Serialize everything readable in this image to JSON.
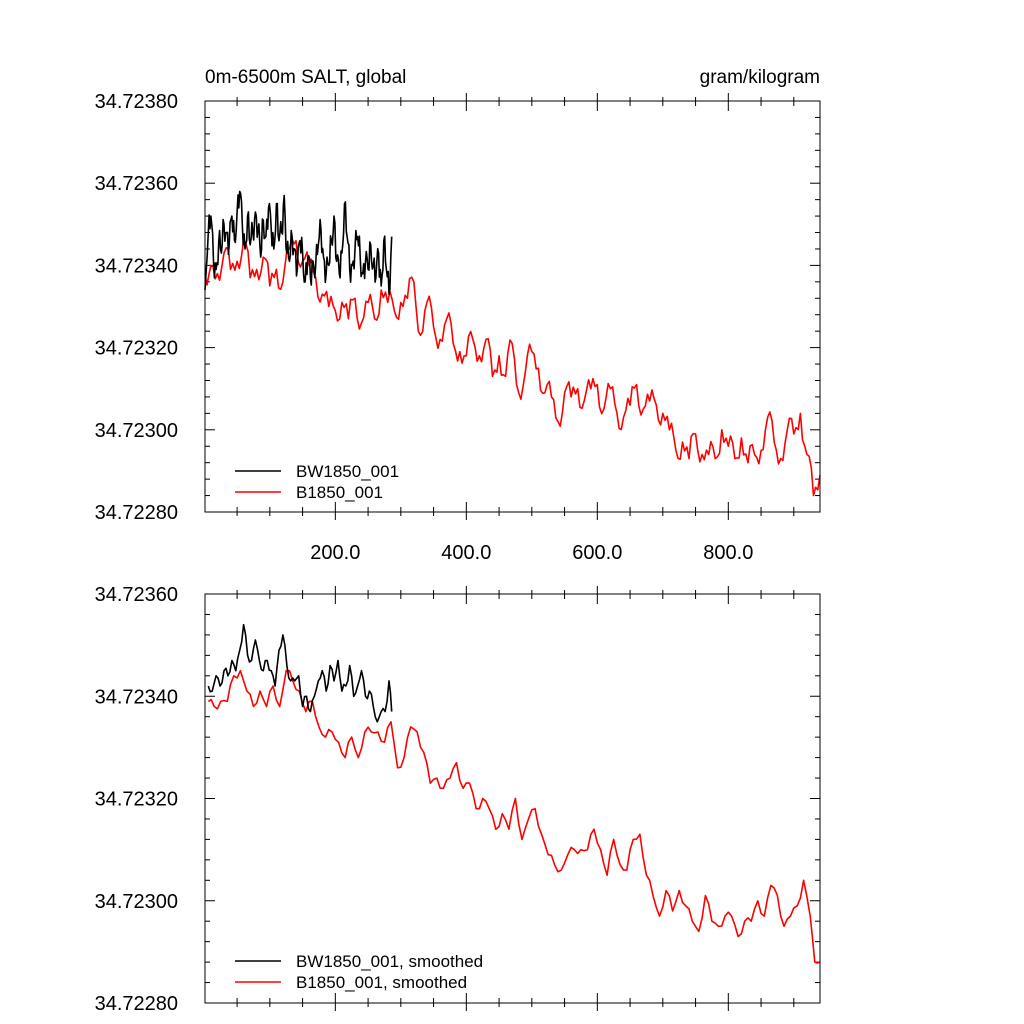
{
  "colors": {
    "bw": "#000000",
    "b": "#ff0000",
    "frame": "#000000",
    "background": "#ffffff"
  },
  "chart_data": [
    {
      "type": "line",
      "title_left": "0m-6500m SALT, global",
      "title_right": "gram/kilogram",
      "xlabel": "",
      "ylabel": "",
      "xlim": [
        1,
        940
      ],
      "ylim": [
        34.7228,
        34.7238
      ],
      "xticks": [
        200,
        400,
        600,
        800
      ],
      "xtick_labels": [
        "200.0",
        "400.0",
        "600.0",
        "800.0"
      ],
      "yticks": [
        34.7228,
        34.723,
        34.7232,
        34.7234,
        34.7236,
        34.7238
      ],
      "ytick_labels": [
        "34.72280",
        "34.72300",
        "34.72320",
        "34.72340",
        "34.72360",
        "34.72380"
      ],
      "legend_location": "lower-left",
      "series": [
        {
          "name": "BW1850_001",
          "color": "#000000",
          "x": [
            1,
            6,
            10,
            14,
            18,
            22,
            26,
            30,
            34,
            38,
            42,
            46,
            50,
            54,
            58,
            62,
            66,
            70,
            74,
            78,
            82,
            86,
            90,
            94,
            98,
            102,
            106,
            110,
            114,
            118,
            122,
            126,
            130,
            134,
            138,
            142,
            146,
            150,
            154,
            158,
            162,
            166,
            170,
            174,
            178,
            182,
            186,
            190,
            194,
            198,
            202,
            206,
            210,
            214,
            218,
            222,
            226,
            230,
            234,
            238,
            242,
            246,
            250,
            254,
            258,
            262,
            266,
            270,
            274,
            278,
            282,
            286
          ],
          "values": [
            34.72334,
            34.72348,
            34.72352,
            34.72341,
            34.72339,
            34.72346,
            34.72343,
            34.7235,
            34.72348,
            34.72345,
            34.72352,
            34.72346,
            34.72353,
            34.72358,
            34.7235,
            34.72344,
            34.72352,
            34.72345,
            34.72348,
            34.72353,
            34.72349,
            34.72342,
            34.72351,
            34.72347,
            34.72354,
            34.72349,
            34.72344,
            34.72355,
            34.72346,
            34.72348,
            34.72357,
            34.72343,
            34.72341,
            34.72347,
            34.72344,
            34.72339,
            34.72346,
            34.72343,
            34.72336,
            34.72342,
            34.72337,
            34.72341,
            34.7234,
            34.72345,
            34.72349,
            34.72342,
            34.72338,
            34.7234,
            34.72346,
            34.72352,
            34.72341,
            34.72338,
            34.72343,
            34.72355,
            34.72347,
            34.72339,
            34.7234,
            34.72344,
            34.72347,
            34.72342,
            34.72338,
            34.72341,
            34.72339,
            34.72345,
            34.7234,
            34.72337,
            34.72343,
            34.72335,
            34.72346,
            34.72339,
            34.72333,
            34.72347
          ]
        },
        {
          "name": "B1850_001",
          "color": "#ff0000",
          "x": [
            1,
            10,
            20,
            30,
            40,
            50,
            60,
            70,
            80,
            90,
            100,
            110,
            120,
            130,
            140,
            150,
            160,
            170,
            180,
            190,
            200,
            210,
            220,
            230,
            240,
            250,
            260,
            270,
            280,
            290,
            300,
            310,
            320,
            330,
            340,
            350,
            360,
            370,
            380,
            390,
            400,
            410,
            420,
            430,
            440,
            450,
            460,
            470,
            480,
            490,
            500,
            510,
            520,
            530,
            540,
            550,
            560,
            570,
            580,
            590,
            600,
            610,
            620,
            630,
            640,
            650,
            660,
            670,
            680,
            690,
            700,
            710,
            720,
            730,
            740,
            750,
            760,
            770,
            780,
            790,
            800,
            810,
            820,
            830,
            840,
            850,
            860,
            870,
            880,
            890,
            900,
            910,
            920,
            930,
            940
          ],
          "values": [
            34.72338,
            34.7234,
            34.72338,
            34.72343,
            34.72339,
            34.72341,
            34.72346,
            34.72337,
            34.72339,
            34.72342,
            34.72335,
            34.72339,
            34.72336,
            34.72344,
            34.72346,
            34.72341,
            34.7234,
            34.72337,
            34.72333,
            34.7233,
            34.72329,
            34.72331,
            34.72327,
            34.72332,
            34.72326,
            34.72331,
            34.72327,
            34.72334,
            34.72331,
            34.72329,
            34.72331,
            34.72332,
            34.72336,
            34.72323,
            34.72331,
            34.72325,
            34.72322,
            34.72327,
            34.72321,
            34.72319,
            34.72318,
            34.72322,
            34.72318,
            34.72322,
            34.72313,
            34.72318,
            34.72313,
            34.72321,
            34.72309,
            34.72314,
            34.72319,
            34.72315,
            34.72309,
            34.72308,
            34.72302,
            34.72309,
            34.72308,
            34.7231,
            34.72307,
            34.7231,
            34.72311,
            34.72305,
            34.7231,
            34.72304,
            34.72303,
            34.72306,
            34.72311,
            34.72305,
            34.72307,
            34.72306,
            34.72304,
            34.723,
            34.72295,
            34.72297,
            34.72293,
            34.72299,
            34.72294,
            34.72294,
            34.72293,
            34.723,
            34.72296,
            34.72293,
            34.72298,
            34.72292,
            34.72294,
            34.72295,
            34.72303,
            34.72297,
            34.72293,
            34.723,
            34.72299,
            34.72304,
            34.72294,
            34.72284,
            34.72289
          ]
        }
      ]
    },
    {
      "type": "line",
      "xlabel": "",
      "ylabel": "",
      "xlim": [
        1,
        940
      ],
      "ylim": [
        34.7228,
        34.7236
      ],
      "yticks": [
        34.7228,
        34.723,
        34.7232,
        34.7234,
        34.7236
      ],
      "ytick_labels": [
        "34.72280",
        "34.72300",
        "34.72320",
        "34.72340",
        "34.72360"
      ],
      "legend_location": "lower-left",
      "series": [
        {
          "name": "BW1850_001, smoothed",
          "color": "#000000",
          "x": [
            6,
            12,
            18,
            24,
            30,
            36,
            42,
            48,
            54,
            60,
            66,
            72,
            78,
            84,
            90,
            96,
            102,
            108,
            114,
            120,
            126,
            132,
            138,
            144,
            150,
            156,
            162,
            168,
            174,
            180,
            186,
            192,
            198,
            204,
            210,
            216,
            222,
            228,
            234,
            240,
            246,
            252,
            258,
            264,
            270,
            276,
            282,
            286
          ],
          "values": [
            34.72342,
            34.72341,
            34.72344,
            34.72342,
            34.72345,
            34.72344,
            34.72347,
            34.72345,
            34.72349,
            34.72354,
            34.72348,
            34.72347,
            34.72351,
            34.72347,
            34.72345,
            34.72347,
            34.72345,
            34.72342,
            34.72349,
            34.72352,
            34.72346,
            34.72343,
            34.72343,
            34.72344,
            34.72338,
            34.7234,
            34.72337,
            34.7234,
            34.72343,
            34.72345,
            34.72341,
            34.72346,
            34.72343,
            34.72347,
            34.72341,
            34.72342,
            34.72346,
            34.7234,
            34.72342,
            34.72345,
            34.7234,
            34.72341,
            34.72338,
            34.72335,
            34.72337,
            34.72337,
            34.72343,
            34.72337
          ]
        },
        {
          "name": "B1850_001, smoothed",
          "color": "#ff0000",
          "x": [
            6,
            15,
            25,
            35,
            45,
            55,
            65,
            75,
            85,
            95,
            105,
            115,
            125,
            135,
            145,
            155,
            165,
            175,
            185,
            195,
            205,
            215,
            225,
            235,
            245,
            255,
            265,
            275,
            285,
            295,
            305,
            315,
            325,
            335,
            345,
            355,
            365,
            375,
            385,
            395,
            405,
            415,
            425,
            435,
            445,
            455,
            465,
            475,
            485,
            495,
            505,
            515,
            525,
            535,
            545,
            555,
            565,
            575,
            585,
            595,
            605,
            615,
            625,
            635,
            645,
            655,
            665,
            675,
            685,
            695,
            705,
            715,
            725,
            735,
            745,
            755,
            765,
            775,
            785,
            795,
            805,
            815,
            825,
            835,
            845,
            855,
            865,
            875,
            885,
            895,
            905,
            915,
            925,
            932,
            940
          ],
          "values": [
            34.72339,
            34.72338,
            34.72339,
            34.72339,
            34.72344,
            34.72345,
            34.72341,
            34.72338,
            34.72341,
            34.72338,
            34.72342,
            34.72338,
            34.72345,
            34.72343,
            34.72341,
            34.72337,
            34.72339,
            34.72334,
            34.72332,
            34.72333,
            34.72331,
            34.72328,
            34.72332,
            34.72328,
            34.72333,
            34.72333,
            34.72333,
            34.72331,
            34.72335,
            34.72326,
            34.72328,
            34.72334,
            34.72333,
            34.72329,
            34.72323,
            34.72324,
            34.72322,
            34.72324,
            34.72327,
            34.72322,
            34.72323,
            34.72318,
            34.7232,
            34.72318,
            34.72314,
            34.72317,
            34.72314,
            34.7232,
            34.72312,
            34.72316,
            34.72318,
            34.72313,
            34.72309,
            34.72307,
            34.72306,
            34.72309,
            34.7231,
            34.7231,
            34.7231,
            34.72314,
            34.7231,
            34.72305,
            34.72312,
            34.72307,
            34.72306,
            34.72312,
            34.72313,
            34.72305,
            34.72301,
            34.72297,
            34.72302,
            34.72298,
            34.72302,
            34.72299,
            34.72296,
            34.72294,
            34.72301,
            34.72296,
            34.72295,
            34.72297,
            34.72297,
            34.72293,
            34.72296,
            34.72296,
            34.723,
            34.72297,
            34.72303,
            34.72301,
            34.72295,
            34.72297,
            34.72299,
            34.72304,
            34.72297,
            34.72288,
            34.72288
          ]
        }
      ]
    }
  ]
}
